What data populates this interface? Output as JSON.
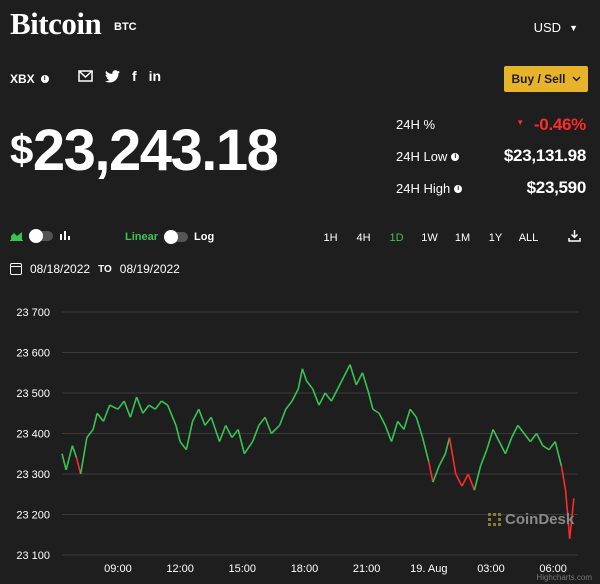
{
  "header": {
    "title": "Bitcoin",
    "ticker": "BTC",
    "currency": "USD",
    "exchange": "XBX",
    "buy_sell_label": "Buy / Sell"
  },
  "price": {
    "symbol": "$",
    "value": "23,243.18"
  },
  "stats": [
    {
      "label": "24H %",
      "value": "-0.46%",
      "negative": true
    },
    {
      "label": "24H Low",
      "value": "$23,131.98"
    },
    {
      "label": "24H High",
      "value": "$23,590"
    }
  ],
  "controls": {
    "linear_label": "Linear",
    "log_label": "Log",
    "ranges": [
      "1H",
      "4H",
      "1D",
      "1W",
      "1M",
      "1Y",
      "ALL"
    ],
    "active_range": "1D"
  },
  "date_range": {
    "from": "08/18/2022",
    "to_label": "TO",
    "to": "08/19/2022"
  },
  "watermark": "CoinDesk",
  "credit": "Highcharts.com",
  "colors": {
    "up": "#37c552",
    "down": "#ff2a2a",
    "accent": "#e7b32a",
    "background": "#1e1e1e"
  },
  "icons": {
    "social": [
      "mail-icon",
      "twitter-icon",
      "facebook-icon",
      "linkedin-icon"
    ]
  },
  "chart_data": {
    "type": "line",
    "y_ticks": [
      "23 700",
      "23 600",
      "23 500",
      "23 400",
      "23 300",
      "23 200",
      "23 100"
    ],
    "ylim": [
      23100,
      23700
    ],
    "x_ticks": [
      "09:00",
      "12:00",
      "15:00",
      "18:00",
      "21:00",
      "19. Aug",
      "03:00",
      "06:00"
    ],
    "x_tick_hours": [
      9,
      12,
      15,
      18,
      21,
      24,
      27,
      30
    ],
    "xlim_hours": [
      6.3,
      31.2
    ],
    "grid": true,
    "points": [
      [
        6.3,
        23350
      ],
      [
        6.5,
        23310
      ],
      [
        6.8,
        23370
      ],
      [
        7.0,
        23340
      ],
      [
        7.2,
        23300
      ],
      [
        7.5,
        23390
      ],
      [
        7.8,
        23410
      ],
      [
        8.0,
        23450
      ],
      [
        8.3,
        23430
      ],
      [
        8.6,
        23470
      ],
      [
        9.0,
        23460
      ],
      [
        9.3,
        23480
      ],
      [
        9.6,
        23440
      ],
      [
        9.9,
        23490
      ],
      [
        10.2,
        23450
      ],
      [
        10.5,
        23470
      ],
      [
        10.8,
        23460
      ],
      [
        11.1,
        23480
      ],
      [
        11.4,
        23470
      ],
      [
        11.8,
        23420
      ],
      [
        12.0,
        23380
      ],
      [
        12.3,
        23360
      ],
      [
        12.6,
        23430
      ],
      [
        12.9,
        23460
      ],
      [
        13.2,
        23420
      ],
      [
        13.5,
        23440
      ],
      [
        13.9,
        23380
      ],
      [
        14.2,
        23420
      ],
      [
        14.5,
        23390
      ],
      [
        14.8,
        23410
      ],
      [
        15.1,
        23350
      ],
      [
        15.5,
        23380
      ],
      [
        15.8,
        23420
      ],
      [
        16.1,
        23440
      ],
      [
        16.4,
        23400
      ],
      [
        16.8,
        23420
      ],
      [
        17.1,
        23460
      ],
      [
        17.4,
        23480
      ],
      [
        17.7,
        23510
      ],
      [
        17.9,
        23560
      ],
      [
        18.1,
        23530
      ],
      [
        18.4,
        23510
      ],
      [
        18.7,
        23470
      ],
      [
        19.0,
        23500
      ],
      [
        19.3,
        23480
      ],
      [
        19.6,
        23510
      ],
      [
        19.9,
        23540
      ],
      [
        20.2,
        23570
      ],
      [
        20.5,
        23520
      ],
      [
        20.8,
        23550
      ],
      [
        21.1,
        23500
      ],
      [
        21.3,
        23460
      ],
      [
        21.6,
        23450
      ],
      [
        21.9,
        23420
      ],
      [
        22.2,
        23380
      ],
      [
        22.5,
        23430
      ],
      [
        22.8,
        23410
      ],
      [
        23.1,
        23460
      ],
      [
        23.4,
        23440
      ],
      [
        23.7,
        23390
      ],
      [
        24.0,
        23330
      ],
      [
        24.2,
        23280
      ],
      [
        24.5,
        23320
      ],
      [
        24.8,
        23350
      ],
      [
        25.0,
        23390
      ],
      [
        25.3,
        23300
      ],
      [
        25.6,
        23270
      ],
      [
        25.9,
        23300
      ],
      [
        26.2,
        23260
      ],
      [
        26.5,
        23320
      ],
      [
        26.8,
        23360
      ],
      [
        27.1,
        23410
      ],
      [
        27.4,
        23380
      ],
      [
        27.7,
        23350
      ],
      [
        28.0,
        23390
      ],
      [
        28.3,
        23420
      ],
      [
        28.6,
        23400
      ],
      [
        28.9,
        23380
      ],
      [
        29.2,
        23400
      ],
      [
        29.5,
        23370
      ],
      [
        29.8,
        23360
      ],
      [
        30.1,
        23380
      ],
      [
        30.4,
        23320
      ],
      [
        30.6,
        23260
      ],
      [
        30.8,
        23140
      ],
      [
        31.0,
        23240
      ]
    ]
  }
}
